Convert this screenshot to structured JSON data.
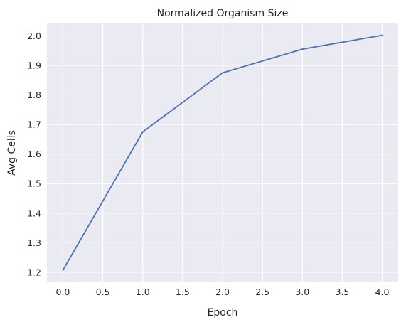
{
  "chart_data": {
    "type": "line",
    "title": "Normalized Organism Size",
    "xlabel": "Epoch",
    "ylabel": "Avg Cells",
    "x": [
      0,
      1,
      2,
      3,
      4
    ],
    "series": [
      {
        "values": [
          1.207,
          1.675,
          1.875,
          1.955,
          2.002
        ]
      }
    ],
    "xlim": [
      -0.2,
      4.2
    ],
    "ylim": [
      1.166,
      2.042
    ],
    "xticks": [
      0.0,
      0.5,
      1.0,
      1.5,
      2.0,
      2.5,
      3.0,
      3.5,
      4.0
    ],
    "xtick_labels": [
      "0.0",
      "0.5",
      "1.0",
      "1.5",
      "2.0",
      "2.5",
      "3.0",
      "3.5",
      "4.0"
    ],
    "yticks": [
      1.2,
      1.3,
      1.4,
      1.5,
      1.6,
      1.7,
      1.8,
      1.9,
      2.0
    ],
    "ytick_labels": [
      "1.2",
      "1.3",
      "1.4",
      "1.5",
      "1.6",
      "1.7",
      "1.8",
      "1.9",
      "2.0"
    ],
    "grid": true,
    "legend": "none",
    "colors": {
      "background": "#eaeaf2",
      "grid": "#ffffff",
      "line": "#4c72b0",
      "text": "#262626"
    }
  }
}
